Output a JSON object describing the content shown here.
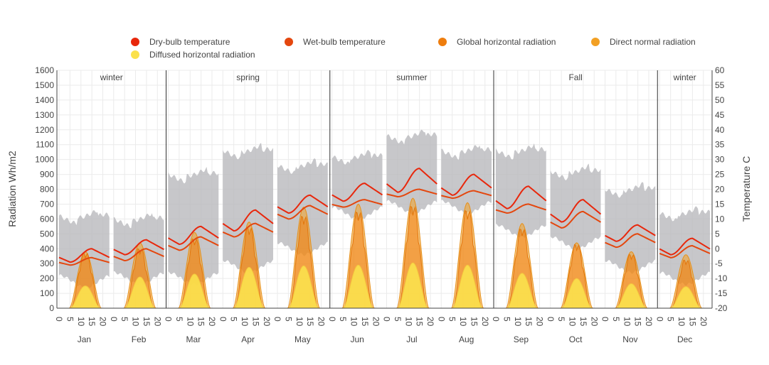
{
  "chart_data": {
    "type": "line",
    "y_left_label": "Radiation Wh/m2",
    "y_right_label": "Temperature C",
    "y_left_range": [
      0,
      1600
    ],
    "y_left_ticks": [
      0,
      100,
      200,
      300,
      400,
      500,
      600,
      700,
      800,
      900,
      1000,
      1100,
      1200,
      1300,
      1400,
      1500,
      1600
    ],
    "y_right_range": [
      -20,
      60
    ],
    "y_right_ticks": [
      -20,
      -15,
      -10,
      -5,
      0,
      5,
      10,
      15,
      20,
      25,
      30,
      35,
      40,
      45,
      50,
      55,
      60
    ],
    "hour_ticks": [
      "0",
      "5",
      "10",
      "15",
      "20"
    ],
    "grid": true,
    "legend_position": "top",
    "legend": [
      {
        "name": "Dry-bulb temperature",
        "color": "#e8270c"
      },
      {
        "name": "Wet-bulb temperature",
        "color": "#e4470e"
      },
      {
        "name": "Global horizontal radiation",
        "color": "#ee7d0e"
      },
      {
        "name": "Direct normal radiation",
        "color": "#f2a024"
      },
      {
        "name": "Diffused horizontal radiation",
        "color": "#fbe14c"
      }
    ],
    "seasons": [
      {
        "name": "winter",
        "start_month": 0,
        "end_month": 2
      },
      {
        "name": "spring",
        "start_month": 2,
        "end_month": 5
      },
      {
        "name": "summer",
        "start_month": 5,
        "end_month": 8
      },
      {
        "name": "Fall",
        "start_month": 8,
        "end_month": 11
      },
      {
        "name": "winter",
        "start_month": 11,
        "end_month": 12
      }
    ],
    "months": [
      {
        "name": "Jan",
        "temp_min": -13,
        "temp_max": 13,
        "dry_low": -4.5,
        "dry_high": 0,
        "wet_low": -5.5,
        "wet_high": -3,
        "ghr_peak": 390,
        "dnr_peak": 380,
        "dhr_peak": 150
      },
      {
        "name": "Feb",
        "temp_min": -12,
        "temp_max": 12,
        "dry_low": -2,
        "dry_high": 3,
        "wet_low": -4,
        "wet_high": 0,
        "ghr_peak": 420,
        "dnr_peak": 440,
        "dhr_peak": 210
      },
      {
        "name": "Mar",
        "temp_min": -12,
        "temp_max": 27,
        "dry_low": 1.5,
        "dry_high": 7.5,
        "wet_low": -0.5,
        "wet_high": 4,
        "ghr_peak": 490,
        "dnr_peak": 510,
        "dhr_peak": 230
      },
      {
        "name": "Apr",
        "temp_min": -8,
        "temp_max": 35,
        "dry_low": 6,
        "dry_high": 13,
        "wet_low": 4,
        "wet_high": 8.5,
        "ghr_peak": 570,
        "dnr_peak": 580,
        "dhr_peak": 275
      },
      {
        "name": "May",
        "temp_min": -2,
        "temp_max": 30,
        "dry_low": 12,
        "dry_high": 18,
        "wet_low": 10,
        "wet_high": 14.5,
        "ghr_peak": 650,
        "dnr_peak": 680,
        "dhr_peak": 285
      },
      {
        "name": "Jun",
        "temp_min": 10,
        "temp_max": 33,
        "dry_low": 16,
        "dry_high": 22,
        "wet_low": 14,
        "wet_high": 16.5,
        "ghr_peak": 680,
        "dnr_peak": 700,
        "dhr_peak": 290
      },
      {
        "name": "Jul",
        "temp_min": 12,
        "temp_max": 40,
        "dry_low": 19,
        "dry_high": 27,
        "wet_low": 17.5,
        "wet_high": 20,
        "ghr_peak": 720,
        "dnr_peak": 740,
        "dhr_peak": 305
      },
      {
        "name": "Aug",
        "temp_min": 12,
        "temp_max": 35,
        "dry_low": 18,
        "dry_high": 25,
        "wet_low": 17,
        "wet_high": 19.5,
        "ghr_peak": 690,
        "dnr_peak": 710,
        "dhr_peak": 290
      },
      {
        "name": "Sep",
        "temp_min": 4,
        "temp_max": 35,
        "dry_low": 13.5,
        "dry_high": 21,
        "wet_low": 12,
        "wet_high": 15,
        "ghr_peak": 560,
        "dnr_peak": 570,
        "dhr_peak": 235
      },
      {
        "name": "Oct",
        "temp_min": 0,
        "temp_max": 28,
        "dry_low": 9,
        "dry_high": 16.5,
        "wet_low": 7,
        "wet_high": 12.5,
        "ghr_peak": 450,
        "dnr_peak": 440,
        "dhr_peak": 200
      },
      {
        "name": "Nov",
        "temp_min": -8,
        "temp_max": 22,
        "dry_low": 2.5,
        "dry_high": 8,
        "wet_low": 0.5,
        "wet_high": 5,
        "ghr_peak": 380,
        "dnr_peak": 380,
        "dhr_peak": 165
      },
      {
        "name": "Dec",
        "temp_min": -12,
        "temp_max": 14,
        "dry_low": -2,
        "dry_high": 3.5,
        "wet_low": -3,
        "wet_high": 1,
        "ghr_peak": 340,
        "dnr_peak": 360,
        "dhr_peak": 145
      }
    ]
  }
}
